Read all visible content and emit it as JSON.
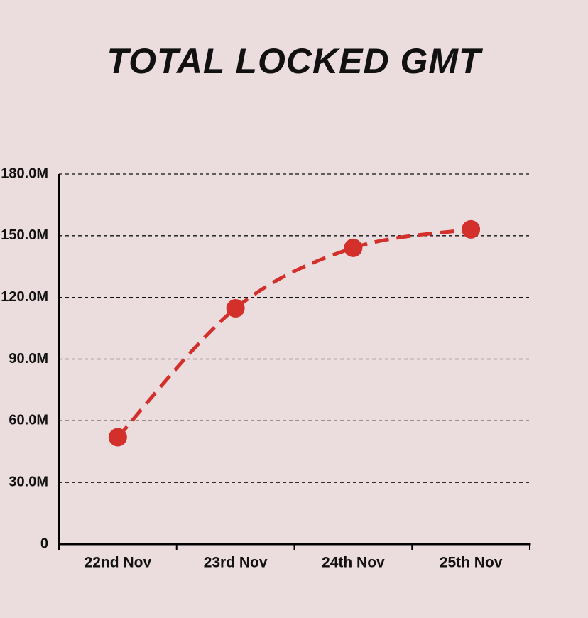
{
  "chart_data": {
    "type": "line",
    "title": "TOTAL LOCKED GMT",
    "categories": [
      "22nd Nov",
      "23rd Nov",
      "24th Nov",
      "25th Nov"
    ],
    "series": [
      {
        "name": "Total Locked GMT",
        "color": "#d3302b",
        "values": [
          52000000,
          114700000,
          144100000,
          153100000
        ]
      }
    ],
    "ylim": [
      0,
      180000000
    ],
    "yticks": [
      0,
      {
        "value": 30000000,
        "label": "30.0M"
      },
      {
        "value": 60000000,
        "label": "60.0M"
      },
      {
        "value": 90000000,
        "label": "90.0M"
      },
      {
        "value": 120000000,
        "label": "120.0M"
      },
      {
        "value": 150000000,
        "label": "150.0M"
      },
      {
        "value": 180000000,
        "label": "180.0M"
      }
    ],
    "grid": true
  }
}
